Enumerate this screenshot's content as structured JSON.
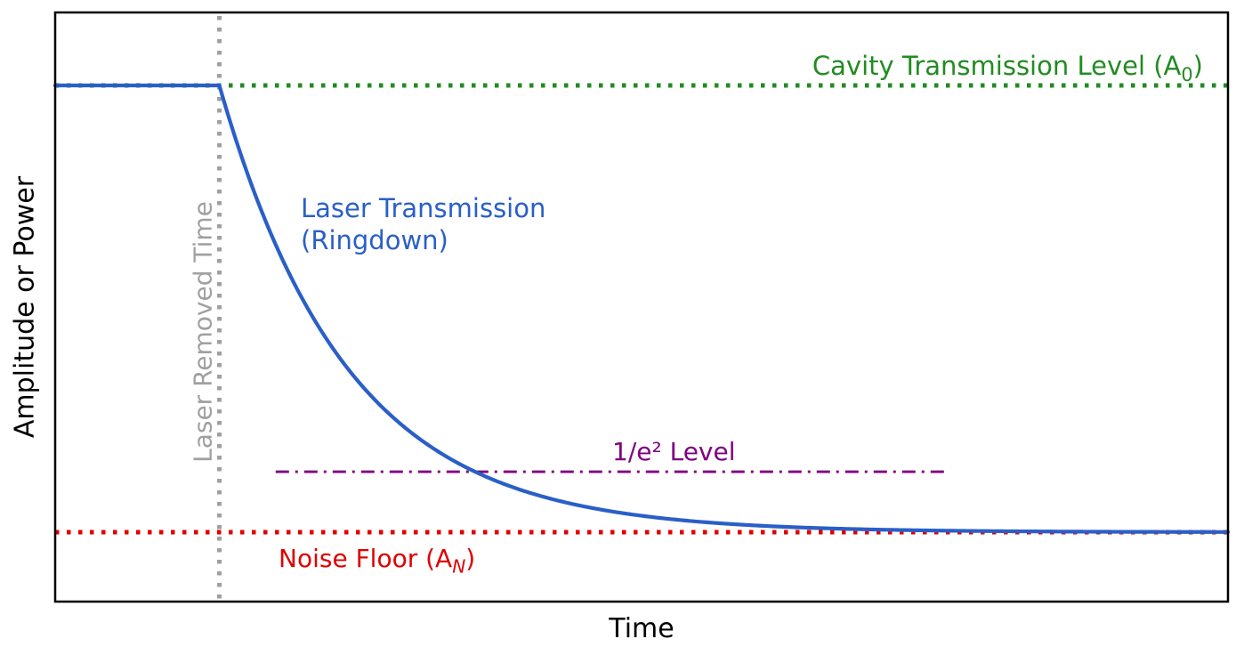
{
  "figure": {
    "xlabel": "Time",
    "ylabel": "Amplitude or Power"
  },
  "labels": {
    "cavity": {
      "prefix": "Cavity Transmission Level (A",
      "sub": "0",
      "suffix": ")"
    },
    "ringdown_line1": "Laser Transmission",
    "ringdown_line2": "(Ringdown)",
    "e2_level": "1/e² Level",
    "noise": {
      "prefix": "Noise Floor (A",
      "sub": "N",
      "suffix": ")"
    },
    "laser_removed": "Laser Removed Time"
  },
  "colors": {
    "cavity_green": "#228B22",
    "ringdown_blue": "#2A5FC8",
    "noise_red": "#E00000",
    "e2_purple": "#800080",
    "laser_removed_gray": "#A0A0A0",
    "axis_black": "#000000"
  },
  "chart_data": {
    "type": "line",
    "title": "",
    "xlabel": "Time",
    "ylabel": "Amplitude or Power",
    "x_range": [
      0,
      1
    ],
    "y_range_normalized": [
      0,
      1
    ],
    "grid": false,
    "ticks": "none",
    "reference_lines": [
      {
        "id": "cavity-transmission-level",
        "label": "Cavity Transmission Level (A0)",
        "orientation": "horizontal",
        "value": 1.0,
        "style": "dotted",
        "color_key": "cavity_green",
        "x_span": [
          0,
          1
        ]
      },
      {
        "id": "noise-floor",
        "label": "Noise Floor (A_N)",
        "orientation": "horizontal",
        "value": 0.0,
        "style": "dotted",
        "color_key": "noise_red",
        "x_span": [
          0,
          1
        ]
      },
      {
        "id": "one-over-e2-level",
        "label": "1/e² Level",
        "orientation": "horizontal",
        "value": 0.1353,
        "style": "dashdot",
        "color_key": "e2_purple",
        "x_span": [
          0.188,
          0.759
        ]
      },
      {
        "id": "laser-removed-time",
        "label": "Laser Removed Time",
        "orientation": "vertical",
        "value": 0.14,
        "style": "dotted",
        "color_key": "laser_removed_gray",
        "y_span": [
          0,
          1
        ]
      }
    ],
    "series": [
      {
        "name": "Laser Transmission (Ringdown)",
        "color_key": "ringdown_blue",
        "model": "flat at A0 until laser removed, then exponential decay A_N + (A0 - A_N)*exp(-(t - t_removed)/tau) toward noise floor",
        "A0": 1.0,
        "A_N": 0.0,
        "t_removed": 0.14,
        "tau": 0.109
      }
    ]
  }
}
